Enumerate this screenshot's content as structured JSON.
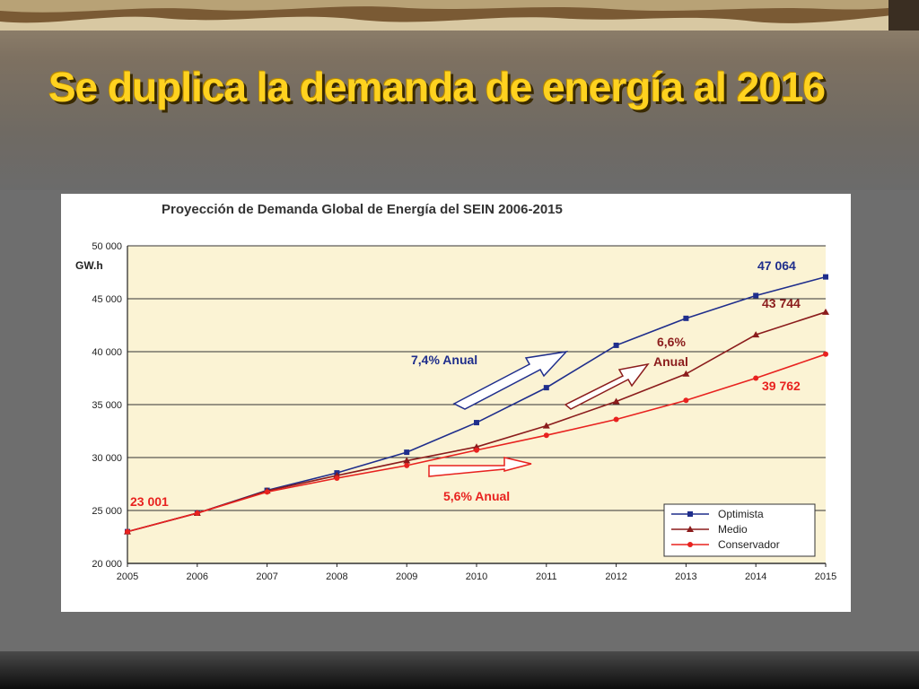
{
  "slide": {
    "title": "Se duplica la demanda de energía al 2016"
  },
  "colors": {
    "title_fill": "#ffd21f",
    "optimista": "#1f2e8c",
    "medio": "#8b1c1c",
    "conservador": "#e8221f",
    "plot_bg": "#fbf3d4"
  },
  "chart_data": {
    "type": "line",
    "title": "Proyección de Demanda Global de Energía del SEIN 2006-2015",
    "ylabel": "GW.h",
    "xlabel": "",
    "x": [
      "2005",
      "2006",
      "2007",
      "2008",
      "2009",
      "2010",
      "2011",
      "2012",
      "2013",
      "2014",
      "2015"
    ],
    "ylim": [
      20000,
      50000
    ],
    "yticks": [
      20000,
      25000,
      30000,
      35000,
      40000,
      45000,
      50000
    ],
    "ytick_labels": [
      "20 000",
      "25 000",
      "30 000",
      "35 000",
      "40 000",
      "45 000",
      "50 000"
    ],
    "grid": true,
    "legend_position": "bottom-right",
    "series": [
      {
        "name": "Optimista",
        "marker": "square",
        "color": "#1f2e8c",
        "values": [
          23001,
          24750,
          26900,
          28550,
          30500,
          33300,
          36600,
          40600,
          43150,
          45300,
          47064
        ]
      },
      {
        "name": "Medio",
        "marker": "triangle",
        "color": "#8b1c1c",
        "values": [
          23001,
          24750,
          26850,
          28300,
          29700,
          31000,
          33000,
          35300,
          37900,
          41600,
          43744
        ]
      },
      {
        "name": "Conservador",
        "marker": "circle",
        "color": "#e8221f",
        "values": [
          23001,
          24750,
          26750,
          28050,
          29250,
          30700,
          32100,
          33600,
          35400,
          37500,
          39762
        ]
      }
    ],
    "annotations": [
      {
        "text": "23 001",
        "color": "#e8221f"
      },
      {
        "text": "47 064",
        "color": "#1f2e8c"
      },
      {
        "text": "43 744",
        "color": "#8b1c1c"
      },
      {
        "text": "39 762",
        "color": "#e8221f"
      },
      {
        "text": "7,4% Anual",
        "color": "#1f2e8c"
      },
      {
        "text": "6,6%",
        "color": "#8b1c1c"
      },
      {
        "text": "Anual",
        "color": "#8b1c1c"
      },
      {
        "text": "5,6% Anual",
        "color": "#e8221f"
      }
    ]
  }
}
